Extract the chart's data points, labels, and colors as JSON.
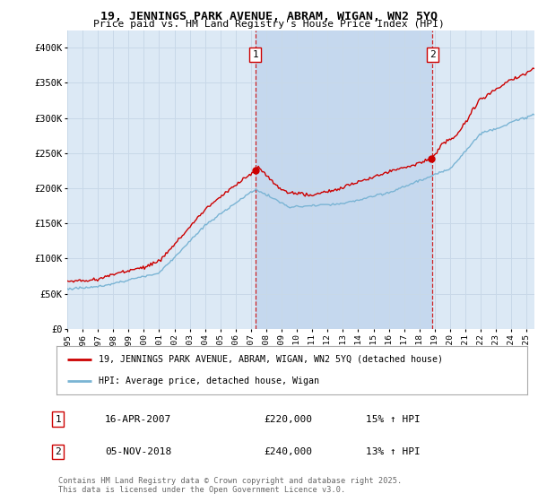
{
  "title": "19, JENNINGS PARK AVENUE, ABRAM, WIGAN, WN2 5YQ",
  "subtitle": "Price paid vs. HM Land Registry's House Price Index (HPI)",
  "plot_bg_color": "#dce9f5",
  "shade_color": "#c5d8ee",
  "yticks": [
    0,
    50000,
    100000,
    150000,
    200000,
    250000,
    300000,
    350000,
    400000
  ],
  "ytick_labels": [
    "£0",
    "£50K",
    "£100K",
    "£150K",
    "£200K",
    "£250K",
    "£300K",
    "£350K",
    "£400K"
  ],
  "annotation1_year": 2007.28,
  "annotation2_year": 2018.84,
  "annotation1_value": 220000,
  "annotation2_value": 240000,
  "legend_label_red": "19, JENNINGS PARK AVENUE, ABRAM, WIGAN, WN2 5YQ (detached house)",
  "legend_label_blue": "HPI: Average price, detached house, Wigan",
  "footnote": "Contains HM Land Registry data © Crown copyright and database right 2025.\nThis data is licensed under the Open Government Licence v3.0.",
  "table_row1_date": "16-APR-2007",
  "table_row1_price": "£220,000",
  "table_row1_pct": "15% ↑ HPI",
  "table_row2_date": "05-NOV-2018",
  "table_row2_price": "£240,000",
  "table_row2_pct": "13% ↑ HPI",
  "red_color": "#cc0000",
  "blue_color": "#7ab4d4",
  "grid_color": "#c8d8e8",
  "xmin": 1995,
  "xmax": 2025.5
}
